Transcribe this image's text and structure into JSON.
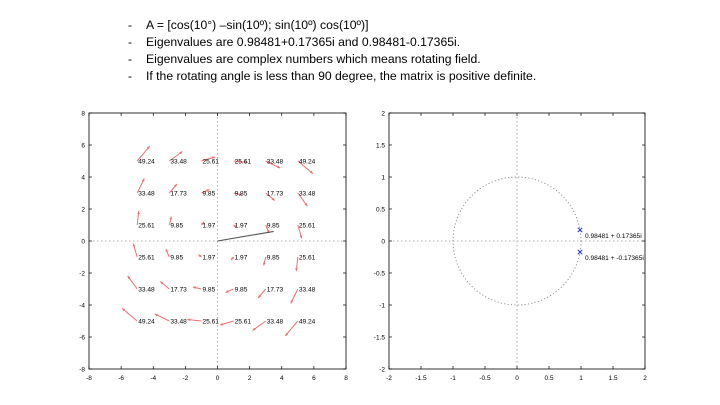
{
  "slide": {
    "bullets": [
      "A = [cos(10°) –sin(10º); sin(10º) cos(10º)]",
      "Eigenvalues are 0.98481+0.17365i and 0.98481-0.17365i.",
      "Eigenvalues are complex numbers which means rotating field.",
      "If the rotating angle is less than 90 degree, the matrix is positive definite."
    ],
    "bullet_marker": "-"
  },
  "chart_data": [
    {
      "type": "quiver",
      "title": "",
      "xlabel": "",
      "ylabel": "",
      "xlim": [
        -8,
        8
      ],
      "ylim": [
        -8,
        8
      ],
      "xticks": [
        "-8",
        "-6",
        "-4",
        "-2",
        "0",
        "2",
        "4",
        "6",
        "8"
      ],
      "yticks": [
        "-8",
        "-6",
        "-4",
        "-2",
        "0",
        "2",
        "4",
        "6",
        "8"
      ],
      "axis_lines_through_origin": "dotted",
      "arrow_color": "#f07070",
      "line_segment": {
        "from": [
          0,
          0
        ],
        "to": [
          3.5,
          0.6
        ],
        "color": "#555555"
      },
      "points": [
        {
          "x": -5,
          "y": 5,
          "label": "49.24"
        },
        {
          "x": -3,
          "y": 5,
          "label": "33.48"
        },
        {
          "x": -1,
          "y": 5,
          "label": "25.61"
        },
        {
          "x": 1,
          "y": 5,
          "label": "25.61"
        },
        {
          "x": 3,
          "y": 5,
          "label": "33.48"
        },
        {
          "x": 5,
          "y": 5,
          "label": "49.24"
        },
        {
          "x": -5,
          "y": 3,
          "label": "33.48"
        },
        {
          "x": -3,
          "y": 3,
          "label": "17.73"
        },
        {
          "x": -1,
          "y": 3,
          "label": "9.85"
        },
        {
          "x": 1,
          "y": 3,
          "label": "9.85"
        },
        {
          "x": 3,
          "y": 3,
          "label": "17.73"
        },
        {
          "x": 5,
          "y": 3,
          "label": "33.48"
        },
        {
          "x": -5,
          "y": 1,
          "label": "25.61"
        },
        {
          "x": -3,
          "y": 1,
          "label": "9.85"
        },
        {
          "x": -1,
          "y": 1,
          "label": "1.97"
        },
        {
          "x": 1,
          "y": 1,
          "label": "1.97"
        },
        {
          "x": 3,
          "y": 1,
          "label": "9.85"
        },
        {
          "x": 5,
          "y": 1,
          "label": "25.61"
        },
        {
          "x": -5,
          "y": -1,
          "label": "25.61"
        },
        {
          "x": -3,
          "y": -1,
          "label": "9.85"
        },
        {
          "x": -1,
          "y": -1,
          "label": "1.97"
        },
        {
          "x": 1,
          "y": -1,
          "label": "1.97"
        },
        {
          "x": 3,
          "y": -1,
          "label": "9.85"
        },
        {
          "x": 5,
          "y": -1,
          "label": "25.61"
        },
        {
          "x": -5,
          "y": -3,
          "label": "33.48"
        },
        {
          "x": -3,
          "y": -3,
          "label": "17.73"
        },
        {
          "x": -1,
          "y": -3,
          "label": "9.85"
        },
        {
          "x": 1,
          "y": -3,
          "label": "9.85"
        },
        {
          "x": 3,
          "y": -3,
          "label": "17.73"
        },
        {
          "x": 5,
          "y": -3,
          "label": "33.48"
        },
        {
          "x": -5,
          "y": -5,
          "label": "49.24"
        },
        {
          "x": -3,
          "y": -5,
          "label": "33.48"
        },
        {
          "x": -1,
          "y": -5,
          "label": "25.61"
        },
        {
          "x": 1,
          "y": -5,
          "label": "25.61"
        },
        {
          "x": 3,
          "y": -5,
          "label": "33.48"
        },
        {
          "x": 5,
          "y": -5,
          "label": "49.24"
        }
      ]
    },
    {
      "type": "scatter",
      "title": "",
      "xlabel": "",
      "ylabel": "",
      "xlim": [
        -2,
        2
      ],
      "ylim": [
        -2,
        2
      ],
      "xticks": [
        "-2",
        "-1.5",
        "-1",
        "-0.5",
        "0",
        "0.5",
        "1",
        "1.5",
        "2"
      ],
      "yticks": [
        "-2",
        "-1.5",
        "-1",
        "-0.5",
        "0",
        "0.5",
        "1",
        "1.5",
        "2"
      ],
      "axis_lines_through_origin": "dotted",
      "unit_circle": {
        "radius": 1,
        "style": "dotted",
        "color": "#888888"
      },
      "marker": "x",
      "marker_color": "#2030d0",
      "points": [
        {
          "x": 0.98481,
          "y": 0.17365,
          "label": "0.98481 + 0.17365i"
        },
        {
          "x": 0.98481,
          "y": -0.17365,
          "label": "0.98481 + -0.17365i"
        }
      ]
    }
  ]
}
